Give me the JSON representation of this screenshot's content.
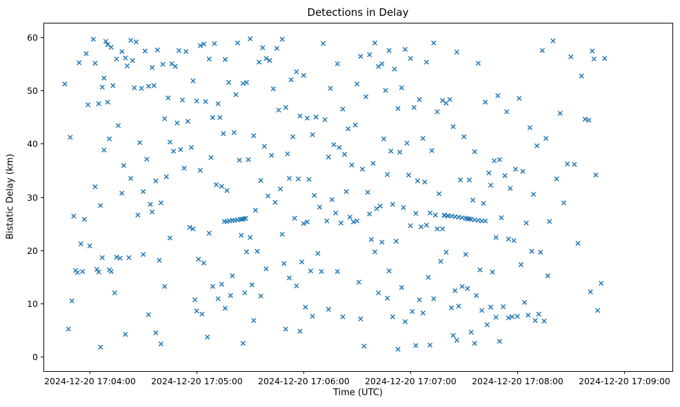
{
  "chart_data": {
    "type": "scatter",
    "title": "Detections in Delay",
    "xlabel": "Time (UTC)",
    "ylabel": "Bistatic Delay (km)",
    "marker": "x",
    "marker_color": "#1f77b4",
    "grid": false,
    "legend": "none",
    "x_unit": "seconds after 2024-12-20 17:04:00 UTC",
    "xlim": [
      -26,
      327
    ],
    "ylim": [
      -2.7,
      62.7
    ],
    "xticks": {
      "values": [
        0,
        60,
        120,
        180,
        240,
        300
      ],
      "labels": [
        "2024-12-20 17:04:00",
        "2024-12-20 17:05:00",
        "2024-12-20 17:06:00",
        "2024-12-20 17:07:00",
        "2024-12-20 17:08:00",
        "2024-12-20 17:09:00"
      ]
    },
    "yticks": [
      0,
      10,
      20,
      30,
      40,
      50,
      60
    ],
    "points": {
      "x": [
        -14,
        -12,
        -11,
        -10,
        -9,
        -8,
        -7,
        -6,
        -5,
        -4,
        -3,
        -2,
        -1,
        0,
        2,
        3,
        3,
        4,
        5,
        5,
        6,
        6,
        7,
        7,
        8,
        8,
        9,
        10,
        10,
        11,
        11,
        12,
        12,
        13,
        14,
        15,
        15,
        16,
        17,
        18,
        18,
        19,
        20,
        20,
        21,
        22,
        23,
        23,
        24,
        25,
        26,
        27,
        28,
        29,
        30,
        30,
        31,
        32,
        33,
        33,
        34,
        35,
        35,
        36,
        37,
        37,
        38,
        39,
        40,
        40,
        41,
        42,
        42,
        43,
        44,
        45,
        45,
        46,
        47,
        48,
        49,
        50,
        51,
        52,
        53,
        54,
        55,
        56,
        57,
        58,
        58,
        59,
        60,
        60,
        61,
        62,
        62,
        63,
        64,
        64,
        65,
        66,
        67,
        67,
        68,
        69,
        69,
        70,
        71,
        72,
        72,
        73,
        74,
        74,
        75,
        76,
        76,
        77,
        75.5,
        77,
        78.5,
        80,
        81.5,
        83,
        84.5,
        85.5,
        86.5,
        87.5,
        78,
        79,
        80,
        81,
        82,
        83,
        84,
        85,
        86,
        86,
        87,
        88,
        88,
        89,
        90,
        90,
        91,
        92,
        92,
        93,
        94,
        95,
        96,
        96,
        97,
        98,
        99,
        99,
        100,
        101,
        102,
        103,
        104,
        105,
        106,
        107,
        108,
        108,
        109,
        110,
        110,
        111,
        112,
        112,
        113,
        114,
        115,
        116,
        116,
        117,
        118,
        118,
        119,
        120,
        120,
        121,
        122,
        122,
        123,
        124,
        125,
        125,
        126,
        127,
        128,
        129,
        130,
        131,
        132,
        133,
        134,
        134,
        135,
        136,
        137,
        138,
        139,
        139,
        140,
        141,
        142,
        142,
        143,
        144,
        145,
        146,
        147,
        148,
        149,
        150,
        150,
        151,
        152,
        152,
        153,
        154,
        155,
        156,
        157,
        157,
        158,
        159,
        160,
        160,
        161,
        162,
        162,
        163,
        164,
        164,
        165,
        166,
        167,
        167,
        168,
        168,
        169,
        170,
        170,
        171,
        172,
        173,
        173,
        174,
        175,
        175,
        176,
        177,
        177,
        178,
        179,
        180,
        180,
        181,
        182,
        183,
        183,
        184,
        185,
        185,
        186,
        187,
        187,
        188,
        189,
        189,
        190,
        191,
        191,
        192,
        193,
        193,
        194,
        195,
        195,
        196,
        197,
        198,
        198,
        199,
        200,
        200,
        201,
        202,
        199,
        201,
        203,
        205,
        207,
        209,
        211,
        212,
        213,
        214,
        216,
        218,
        220,
        222,
        203,
        204,
        204,
        205,
        206,
        206,
        207,
        208,
        209,
        210,
        211,
        212,
        213,
        214,
        215,
        216,
        216,
        217,
        218,
        219,
        220,
        221,
        222,
        223,
        224,
        225,
        225,
        226,
        227,
        228,
        228,
        229,
        230,
        230,
        231,
        232,
        233,
        234,
        235,
        235,
        236,
        237,
        238,
        239,
        240,
        241,
        242,
        243,
        244,
        245,
        246,
        247,
        248,
        249,
        250,
        251,
        252,
        253,
        254,
        255,
        256,
        257,
        258,
        260,
        262,
        264,
        266,
        268,
        270,
        272,
        274,
        276,
        278,
        280,
        281,
        282,
        283,
        284,
        285,
        287,
        289
      ],
      "y": [
        51.2,
        5.2,
        41.2,
        10.5,
        26.4,
        16.2,
        15.8,
        55.2,
        21.2,
        16.0,
        25.8,
        56.9,
        47.3,
        20.8,
        59.6,
        55.1,
        31.9,
        16.4,
        47.5,
        15.9,
        1.8,
        28.4,
        50.6,
        18.6,
        52.3,
        38.8,
        59.2,
        58.6,
        47.8,
        40.9,
        16.3,
        58.1,
        16.0,
        50.9,
        12.0,
        55.9,
        18.7,
        43.4,
        18.5,
        57.3,
        30.7,
        35.9,
        56.1,
        4.2,
        54.6,
        18.6,
        59.4,
        33.5,
        55.6,
        50.5,
        59.1,
        26.6,
        40.2,
        50.4,
        31.0,
        19.2,
        57.4,
        37.1,
        50.8,
        7.9,
        28.6,
        54.3,
        27.2,
        50.9,
        33.0,
        4.5,
        57.6,
        18.1,
        28.9,
        2.4,
        54.9,
        44.7,
        13.2,
        33.8,
        48.6,
        40.3,
        22.3,
        55.0,
        38.6,
        54.5,
        43.9,
        57.5,
        38.9,
        48.2,
        35.4,
        57.3,
        44.2,
        24.3,
        39.3,
        51.8,
        24.0,
        10.7,
        48.0,
        8.6,
        18.3,
        58.4,
        35.0,
        8.0,
        58.7,
        17.6,
        47.9,
        3.7,
        55.9,
        23.2,
        37.4,
        44.9,
        13.2,
        58.8,
        32.3,
        47.5,
        10.9,
        44.9,
        32.0,
        13.6,
        41.9,
        55.8,
        9.1,
        31.2,
        25.4,
        25.4,
        25.5,
        25.6,
        25.6,
        25.7,
        25.8,
        25.8,
        25.9,
        26.0,
        51.5,
        11.5,
        15.2,
        42.1,
        49.2,
        58.9,
        36.9,
        22.8,
        51.3,
        2.5,
        12.0,
        51.5,
        19.7,
        37.0,
        59.7,
        22.4,
        13.5,
        41.5,
        6.8,
        27.5,
        19.8,
        55.3,
        33.1,
        11.4,
        58.0,
        39.5,
        56.0,
        16.5,
        30.2,
        55.6,
        37.8,
        50.3,
        29.0,
        57.9,
        46.3,
        31.5,
        59.6,
        23.0,
        17.5,
        46.8,
        5.2,
        38.1,
        33.5,
        14.8,
        52.0,
        41.3,
        26.0,
        53.5,
        13.3,
        33.4,
        45.2,
        4.8,
        17.8,
        25.0,
        52.8,
        9.3,
        44.8,
        25.3,
        33.3,
        16.1,
        41.7,
        7.6,
        30.3,
        45.0,
        19.4,
        28.1,
        16.0,
        58.8,
        44.5,
        25.5,
        37.5,
        8.9,
        50.4,
        29.5,
        39.8,
        27.0,
        55.0,
        16.0,
        39.3,
        25.1,
        46.5,
        7.5,
        38.0,
        31.0,
        42.8,
        26.2,
        36.0,
        25.3,
        43.5,
        51.2,
        25.5,
        14.0,
        56.4,
        7.1,
        35.2,
        2.0,
        48.8,
        30.9,
        56.7,
        26.8,
        22.0,
        36.3,
        58.9,
        19.7,
        27.8,
        54.5,
        12.0,
        28.3,
        55.0,
        21.5,
        40.9,
        50.0,
        34.2,
        11.0,
        57.5,
        16.1,
        38.6,
        28.6,
        7.5,
        54.0,
        21.7,
        46.6,
        1.4,
        38.4,
        50.5,
        13.0,
        28.0,
        57.7,
        6.6,
        40.1,
        34.1,
        56.0,
        24.6,
        8.5,
        46.8,
        26.9,
        2.1,
        33.0,
        48.3,
        10.7,
        24.4,
        41.0,
        8.2,
        32.8,
        55.3,
        24.7,
        14.9,
        27.0,
        2.2,
        38.7,
        58.9,
        10.9,
        26.6,
        46.0,
        24.0,
        30.6,
        17.9,
        48.1,
        24.0,
        26.5,
        47.6,
        19.6,
        26.4,
        48.3,
        26.6,
        26.5,
        26.4,
        26.3,
        26.2,
        26.1,
        26.0,
        25.9,
        25.9,
        25.8,
        25.7,
        25.6,
        25.5,
        25.5,
        9.2,
        43.2,
        4.0,
        12.4,
        57.2,
        3.1,
        9.5,
        33.2,
        13.2,
        41.3,
        19.2,
        12.8,
        33.2,
        4.6,
        29.4,
        38.5,
        2.5,
        11.5,
        55.1,
        16.3,
        8.7,
        28.8,
        47.8,
        6.0,
        34.5,
        32.2,
        9.3,
        15.9,
        36.8,
        22.4,
        7.4,
        49.0,
        2.9,
        37.0,
        26.1,
        9.4,
        34.0,
        46.0,
        7.3,
        22.1,
        31.6,
        7.5,
        21.8,
        35.2,
        7.6,
        48.5,
        17.3,
        34.8,
        10.2,
        25.1,
        7.8,
        43.0,
        19.8,
        30.5,
        6.8,
        39.6,
        8.0,
        19.6,
        57.5,
        6.7,
        41.0,
        15.2,
        25.4,
        59.3,
        33.4,
        45.7,
        28.9,
        36.2,
        56.3,
        36.1,
        21.3,
        52.7,
        44.6,
        44.4,
        12.2,
        57.4,
        55.9,
        34.1,
        8.7,
        13.8,
        56.0
      ]
    }
  }
}
